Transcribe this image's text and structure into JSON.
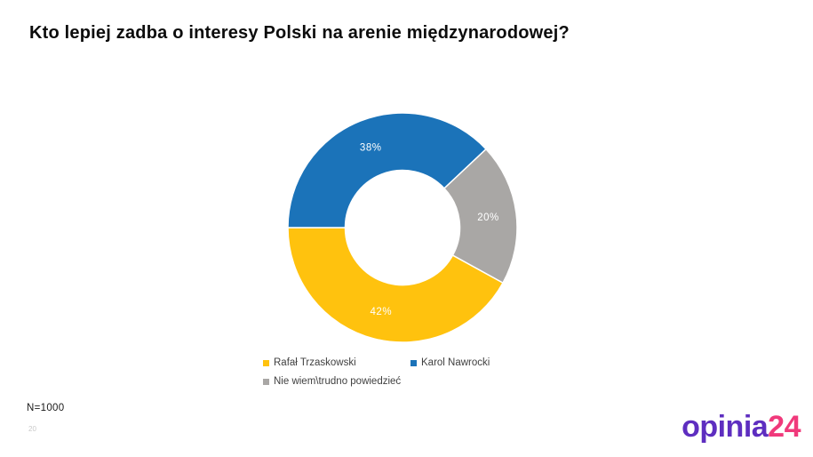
{
  "page": {
    "title": "Kto lepiej zadba o interesy Polski na arenie międzynarodowej?",
    "sample_size": "N=1000",
    "page_number": "20"
  },
  "logo": {
    "text_primary": "opinia",
    "text_secondary": "24",
    "color_primary": "#5E2EC0",
    "color_secondary": "#F0397B"
  },
  "chart_data": {
    "type": "pie",
    "subtype": "donut",
    "title": "Kto lepiej zadba o interesy Polski na arenie międzynarodowej?",
    "segments": [
      {
        "label": "Rafał Trzaskowski",
        "value": 42,
        "display": "42%",
        "color": "#FFC20E"
      },
      {
        "label": "Karol Nawrocki",
        "value": 38,
        "display": "38%",
        "color": "#1B73B9"
      },
      {
        "label": "Nie wiem\\trudno powiedzieć",
        "value": 20,
        "display": "20%",
        "color": "#A9A7A5"
      }
    ],
    "start_angle_deg": 118.8,
    "direction": "clockwise",
    "inner_radius_ratio": 0.5,
    "data_label_color": "#FFFFFF",
    "separator_color": "#FFFFFF",
    "legend_position": "bottom",
    "grid": false
  }
}
